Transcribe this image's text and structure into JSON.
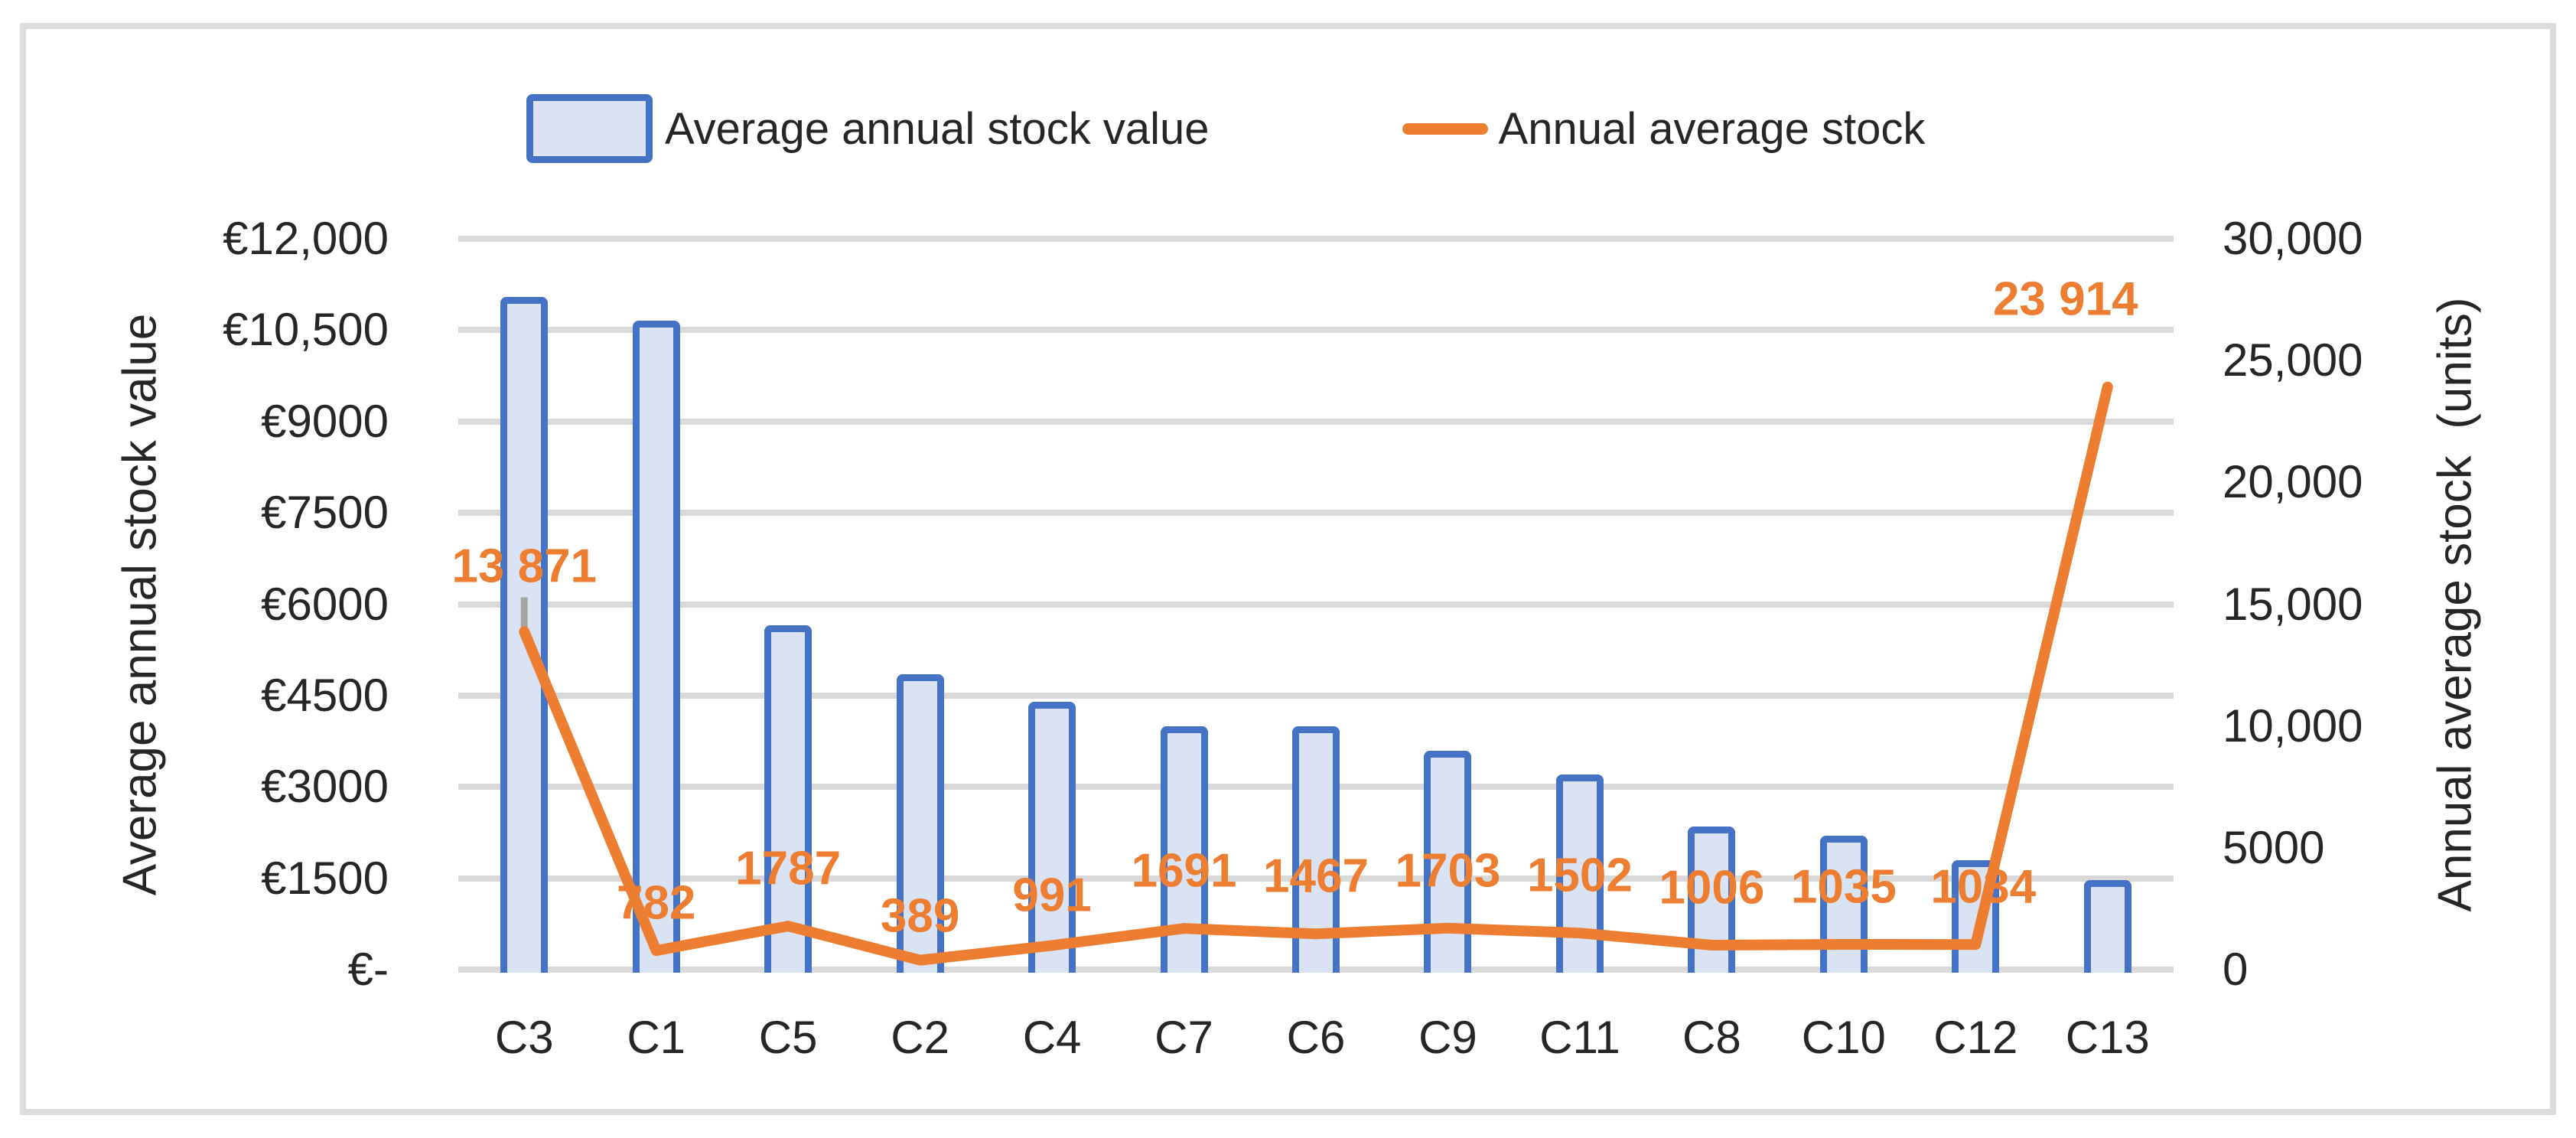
{
  "colors": {
    "bar_fill": "#dae3f3",
    "bar_border": "#4472c4",
    "line": "#ed7d31",
    "data_label": "#ed7d31",
    "gridline": "#d9d9d9",
    "axis_text": "#262626",
    "chart_border": "#dcdcdc",
    "gray_tick": "#a6a6a6",
    "background": "#ffffff"
  },
  "chart_data": {
    "type": "bar+line-combo",
    "title": "",
    "categories": [
      "C3",
      "C1",
      "C5",
      "C2",
      "C4",
      "C7",
      "C6",
      "C9",
      "C11",
      "C8",
      "C10",
      "C12",
      "C13"
    ],
    "series": [
      {
        "name": "Average annual stock value",
        "type": "bar",
        "axis": "left",
        "values": [
          11050,
          10650,
          5650,
          4850,
          4400,
          4000,
          4000,
          3600,
          3200,
          2350,
          2200,
          1800,
          1470
        ]
      },
      {
        "name": "Annual average stock",
        "type": "line",
        "axis": "right",
        "values": [
          13871,
          782,
          1787,
          389,
          991,
          1691,
          1467,
          1703,
          1502,
          1006,
          1035,
          1034,
          23914
        ],
        "data_labels": [
          "13 871",
          "782",
          "1787",
          "389",
          "991",
          "1691",
          "1467",
          "1703",
          "1502",
          "1006",
          "1035",
          "1034",
          "23 914"
        ]
      }
    ],
    "left_axis": {
      "title": "Average annual stock value",
      "min": 0,
      "max": 12000,
      "step": 1500,
      "tick_labels": [
        "€12,000",
        "€10,500",
        "€9000",
        "€7500",
        "€6000",
        "€4500",
        "€3000",
        "€1500",
        "€-"
      ]
    },
    "right_axis": {
      "title": "Annual average stock  (units)",
      "min": 0,
      "max": 30000,
      "step": 5000,
      "tick_labels": [
        "30,000",
        "25,000",
        "20,000",
        "15,000",
        "10,000",
        "5000",
        "0"
      ]
    },
    "gridlines": "horizontal",
    "legend_position": "top",
    "annotations": {
      "gray_tick_at_first_line_point": true
    }
  }
}
